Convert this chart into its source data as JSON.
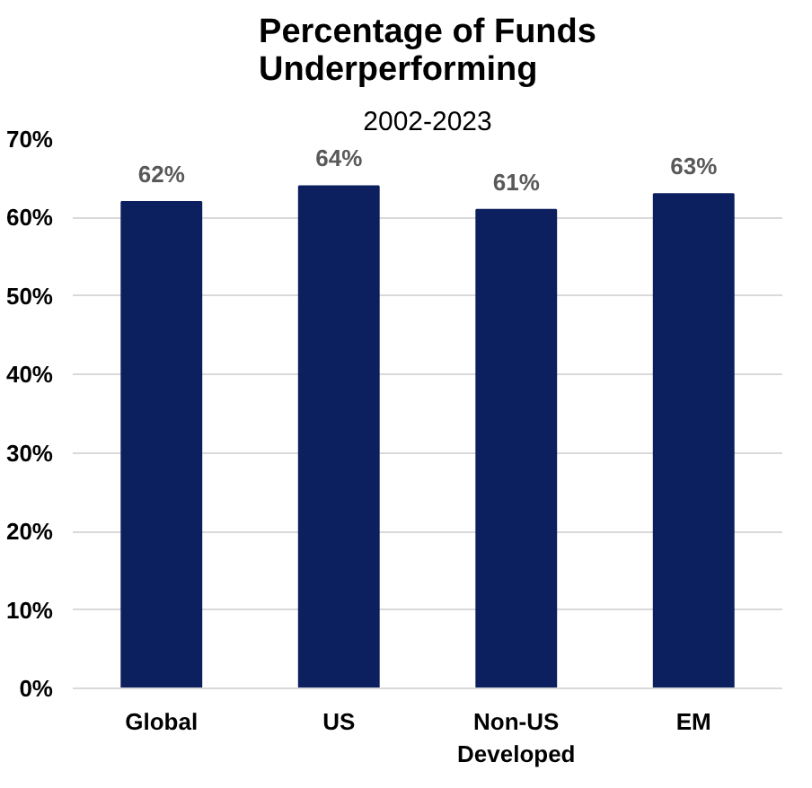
{
  "chart_data": {
    "type": "bar",
    "title": "Percentage of Funds\nUnderperforming",
    "subtitle": "2002-2023",
    "categories": [
      "Global",
      "US",
      "Non-US\nDeveloped",
      "EM"
    ],
    "values": [
      62,
      64,
      61,
      63
    ],
    "color": "#0c1f5e",
    "value_labels": [
      "62%",
      "64%",
      "61%",
      "63%"
    ],
    "ylim": [
      0,
      70
    ],
    "yticks": [
      {
        "value": 0,
        "label": "0%"
      },
      {
        "value": 10,
        "label": "10%"
      },
      {
        "value": 20,
        "label": "20%"
      },
      {
        "value": 30,
        "label": "30%"
      },
      {
        "value": 40,
        "label": "40%"
      },
      {
        "value": 50,
        "label": "50%"
      },
      {
        "value": 60,
        "label": "60%"
      },
      {
        "value": 70,
        "label": "70%"
      }
    ],
    "grid": "y"
  }
}
